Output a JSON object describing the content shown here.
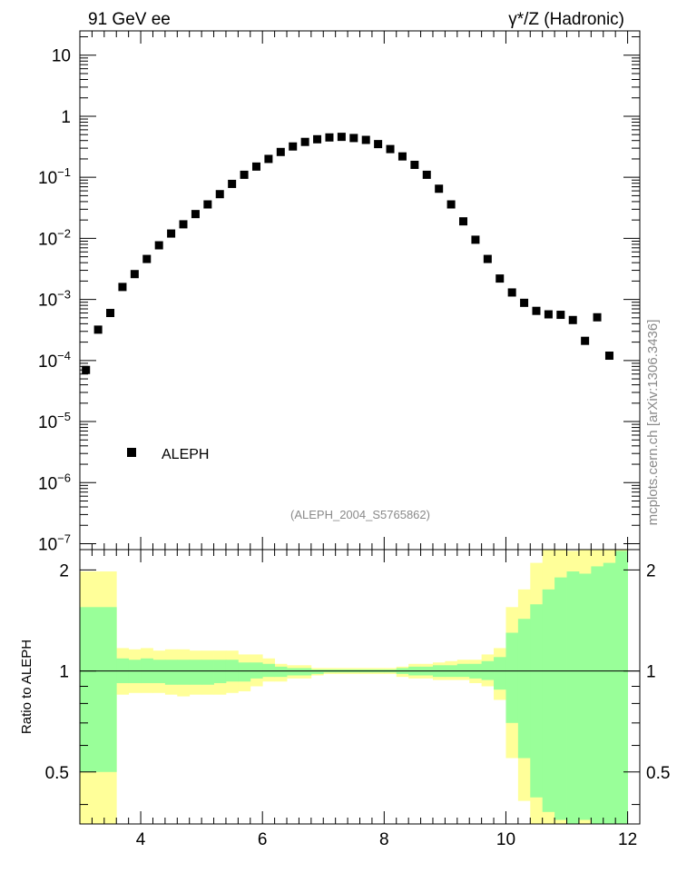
{
  "header": {
    "left_title": "91 GeV ee",
    "right_title": "γ*/Z (Hadronic)"
  },
  "watermark": "mcplots.cern.ch [arXiv:1306.3436]",
  "analysis_tag": "(ALEPH_2004_S5765862)",
  "legend": {
    "label": "ALEPH"
  },
  "colors": {
    "band_inner": "#99ff99",
    "band_outer": "#ffff99",
    "marker": "#000000"
  },
  "chart_data": [
    {
      "type": "scatter",
      "panel": "main",
      "yscale": "log",
      "xlim": [
        3.0,
        12.2
      ],
      "ylim": [
        8e-08,
        25
      ],
      "x_ticks": [
        4,
        6,
        8,
        10,
        12
      ],
      "y_tick_labels": [
        {
          "value": 10,
          "base": "10",
          "exp": ""
        },
        {
          "value": 1,
          "base": "1",
          "exp": ""
        },
        {
          "value": 0.1,
          "base": "10",
          "exp": "−1"
        },
        {
          "value": 0.01,
          "base": "10",
          "exp": "−2"
        },
        {
          "value": 0.001,
          "base": "10",
          "exp": "−3"
        },
        {
          "value": 0.0001,
          "base": "10",
          "exp": "−4"
        },
        {
          "value": 1e-05,
          "base": "10",
          "exp": "−5"
        },
        {
          "value": 1e-06,
          "base": "10",
          "exp": "−6"
        },
        {
          "value": 1e-07,
          "base": "10",
          "exp": "−7"
        }
      ],
      "series": [
        {
          "name": "ALEPH",
          "points": [
            [
              3.1,
              7e-05
            ],
            [
              3.3,
              0.00032
            ],
            [
              3.5,
              0.0006
            ],
            [
              3.7,
              0.0016
            ],
            [
              3.9,
              0.0026
            ],
            [
              4.1,
              0.0046
            ],
            [
              4.3,
              0.0077
            ],
            [
              4.5,
              0.012
            ],
            [
              4.7,
              0.017
            ],
            [
              4.9,
              0.025
            ],
            [
              5.1,
              0.036
            ],
            [
              5.3,
              0.053
            ],
            [
              5.5,
              0.078
            ],
            [
              5.7,
              0.11
            ],
            [
              5.9,
              0.15
            ],
            [
              6.1,
              0.2
            ],
            [
              6.3,
              0.26
            ],
            [
              6.5,
              0.32
            ],
            [
              6.7,
              0.38
            ],
            [
              6.9,
              0.42
            ],
            [
              7.1,
              0.45
            ],
            [
              7.3,
              0.46
            ],
            [
              7.5,
              0.44
            ],
            [
              7.7,
              0.41
            ],
            [
              7.9,
              0.35
            ],
            [
              8.1,
              0.29
            ],
            [
              8.3,
              0.22
            ],
            [
              8.5,
              0.16
            ],
            [
              8.7,
              0.11
            ],
            [
              8.9,
              0.065
            ],
            [
              9.1,
              0.036
            ],
            [
              9.3,
              0.019
            ],
            [
              9.5,
              0.0095
            ],
            [
              9.7,
              0.0046
            ],
            [
              9.9,
              0.0022
            ],
            [
              10.1,
              0.0013
            ],
            [
              10.3,
              0.00088
            ],
            [
              10.5,
              0.00065
            ],
            [
              10.7,
              0.00057
            ],
            [
              10.9,
              0.00056
            ],
            [
              11.1,
              0.00046
            ],
            [
              11.3,
              0.00021
            ],
            [
              11.5,
              0.00051
            ],
            [
              11.7,
              0.00012
            ]
          ]
        }
      ]
    },
    {
      "type": "area",
      "panel": "ratio",
      "ylabel": "Ratio to ALEPH",
      "ylim": [
        0.35,
        2.3
      ],
      "y_ticks": [
        0.5,
        1,
        2
      ],
      "x_ticks": [
        4,
        6,
        8,
        10,
        12
      ],
      "reference_line": 1,
      "bin_edges": [
        3.0,
        3.6,
        3.8,
        4.0,
        4.2,
        4.4,
        4.6,
        4.8,
        5.0,
        5.2,
        5.4,
        5.6,
        5.8,
        6.0,
        6.2,
        6.4,
        6.6,
        6.8,
        7.0,
        7.2,
        7.4,
        7.6,
        7.8,
        8.0,
        8.2,
        8.4,
        8.6,
        8.8,
        9.0,
        9.2,
        9.4,
        9.6,
        9.8,
        10.0,
        10.2,
        10.4,
        10.6,
        10.8,
        11.0,
        11.2,
        11.4,
        11.6,
        11.8,
        12.0
      ],
      "series": [
        {
          "band": "outer",
          "low": [
            0.35,
            0.85,
            0.86,
            0.86,
            0.86,
            0.85,
            0.84,
            0.85,
            0.85,
            0.85,
            0.86,
            0.87,
            0.9,
            0.93,
            0.93,
            0.95,
            0.95,
            0.97,
            0.98,
            0.98,
            0.98,
            0.98,
            0.98,
            0.98,
            0.96,
            0.95,
            0.95,
            0.94,
            0.94,
            0.94,
            0.92,
            0.9,
            0.82,
            0.55,
            0.41,
            0.35,
            0.35,
            0.35,
            0.35,
            0.35,
            0.35,
            0.35,
            0.35
          ],
          "high": [
            1.98,
            1.17,
            1.16,
            1.17,
            1.15,
            1.16,
            1.16,
            1.15,
            1.15,
            1.15,
            1.15,
            1.12,
            1.12,
            1.09,
            1.05,
            1.04,
            1.04,
            1.02,
            1.02,
            1.02,
            1.02,
            1.02,
            1.02,
            1.02,
            1.03,
            1.05,
            1.05,
            1.06,
            1.07,
            1.08,
            1.08,
            1.12,
            1.17,
            1.55,
            1.75,
            2.1,
            2.3,
            2.3,
            2.28,
            2.3,
            2.3,
            2.3,
            2.3
          ]
        },
        {
          "band": "inner",
          "low": [
            0.5,
            0.92,
            0.92,
            0.92,
            0.92,
            0.91,
            0.91,
            0.91,
            0.91,
            0.92,
            0.93,
            0.93,
            0.95,
            0.96,
            0.96,
            0.97,
            0.97,
            0.98,
            0.99,
            0.99,
            0.99,
            0.99,
            0.99,
            0.99,
            0.98,
            0.97,
            0.97,
            0.96,
            0.96,
            0.96,
            0.95,
            0.94,
            0.88,
            0.7,
            0.55,
            0.42,
            0.38,
            0.36,
            0.35,
            0.36,
            0.35,
            0.35,
            0.35
          ],
          "high": [
            1.55,
            1.09,
            1.08,
            1.09,
            1.08,
            1.08,
            1.08,
            1.08,
            1.08,
            1.08,
            1.08,
            1.06,
            1.06,
            1.05,
            1.03,
            1.02,
            1.02,
            1.01,
            1.01,
            1.01,
            1.01,
            1.01,
            1.01,
            1.01,
            1.02,
            1.03,
            1.03,
            1.04,
            1.04,
            1.05,
            1.05,
            1.07,
            1.1,
            1.3,
            1.43,
            1.58,
            1.75,
            1.9,
            1.98,
            1.95,
            2.05,
            2.1,
            2.28
          ]
        }
      ]
    }
  ]
}
